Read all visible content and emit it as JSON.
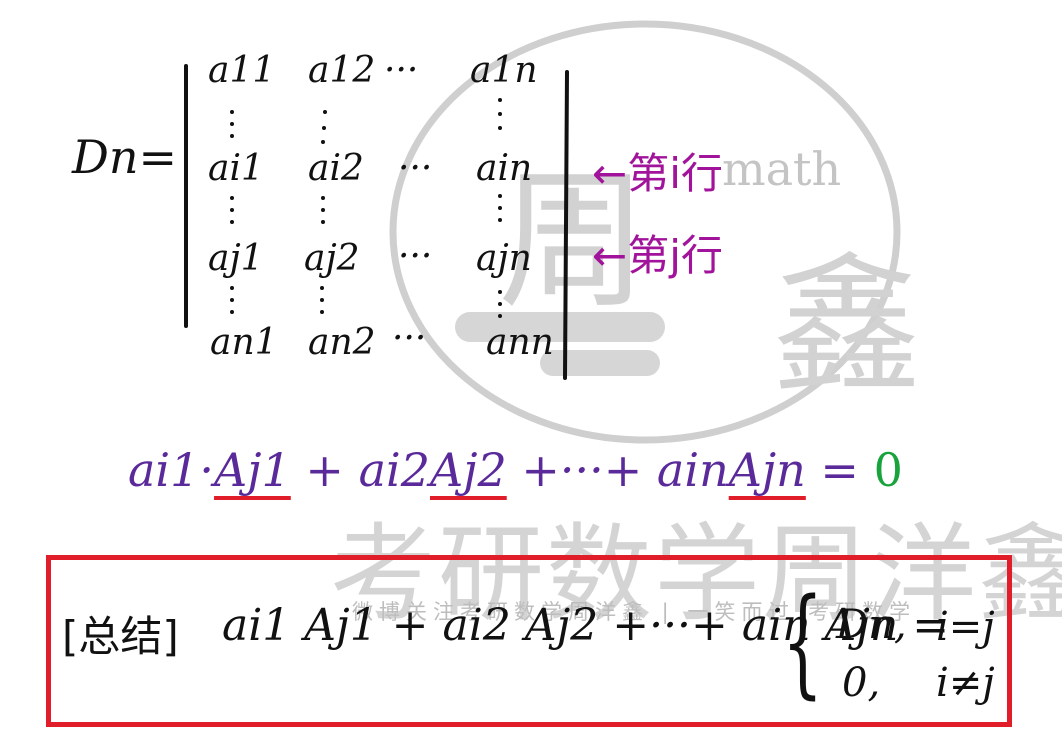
{
  "watermark": {
    "title": "考研数学周洋鑫",
    "subtitle": "微博关注考研数学周洋鑫 | 一笑而过 考研数学",
    "logo_word": "math",
    "logo_char_1": "周",
    "logo_char_2": "鑫"
  },
  "determinant": {
    "label": "Dn=",
    "rows": [
      [
        "a11",
        "a12",
        "···",
        "a1n"
      ],
      [
        "ai1",
        "ai2",
        "···",
        "ain"
      ],
      [
        "aj1",
        "aj2",
        "···",
        "ajn"
      ],
      [
        "an1",
        "an2",
        "···",
        "ann"
      ]
    ],
    "notes": [
      "←第i行",
      "←第j行"
    ]
  },
  "equation": {
    "t1": "ai1·",
    "u1": "Aj1",
    "t2": " + ai2",
    "u2": "Aj2",
    "t3": " +···+ ain",
    "u3": "Ajn",
    "t4": " = ",
    "result": "0"
  },
  "conclusion": {
    "label": "[总结]",
    "expression": "ai1 Aj1 + ai2 Aj2 +···+ ain Ajn =",
    "case1_value": "Dn,",
    "case1_cond": "i=j",
    "case2_value": "0,",
    "case2_cond": "i≠j"
  },
  "colors": {
    "note": "#a1139a",
    "equation": "#5a2a9a",
    "underline": "#e11d2a",
    "zero": "#18a33c",
    "box_border": "#e11d2a"
  }
}
